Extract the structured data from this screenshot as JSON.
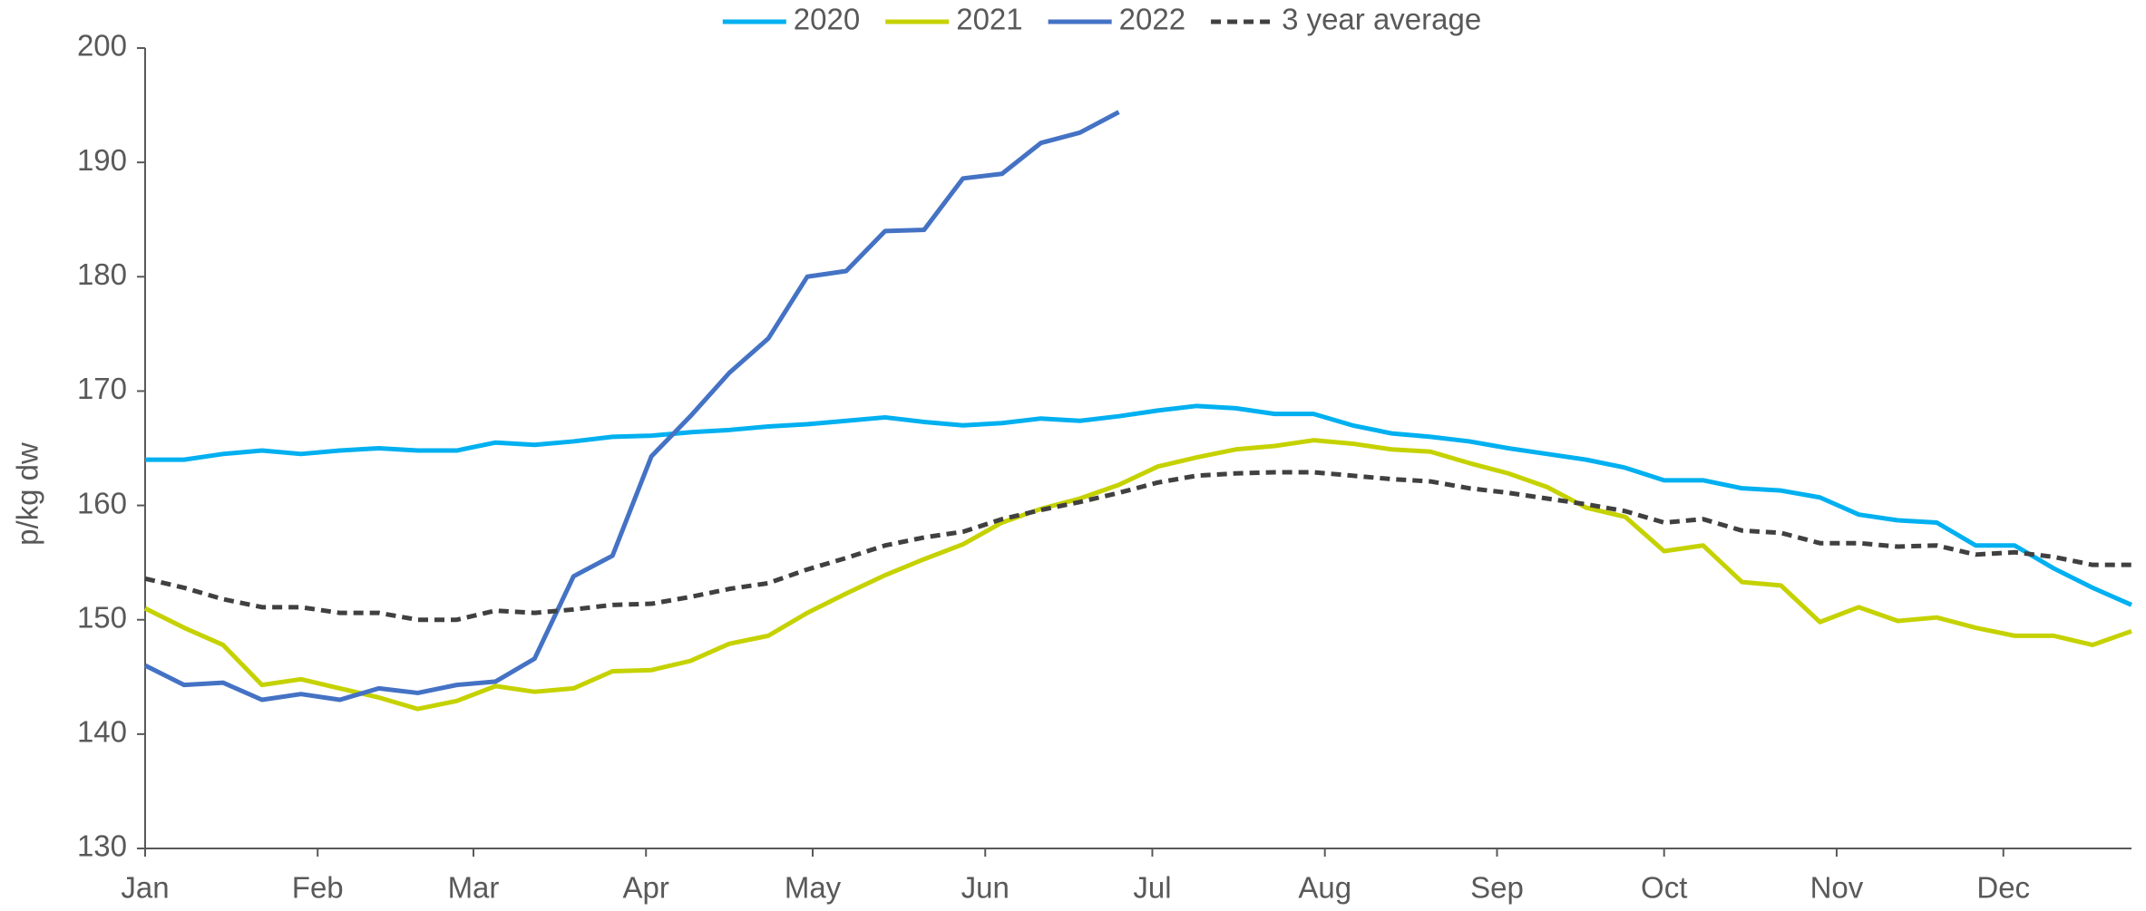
{
  "chart_data": {
    "type": "line",
    "y_label": "p/kg dw",
    "x": [
      0,
      1,
      2,
      3,
      4,
      5,
      6,
      7,
      8,
      9,
      10,
      11,
      12,
      13,
      14,
      15,
      16,
      17,
      18,
      19,
      20,
      21,
      22,
      23,
      24,
      25,
      26,
      27,
      28,
      29,
      30,
      31,
      32,
      33,
      34,
      35,
      36,
      37,
      38,
      39,
      40,
      41,
      42,
      43,
      44,
      45,
      46,
      47,
      48,
      49,
      50,
      51
    ],
    "xlim": [
      0,
      51
    ],
    "xticks": [
      {
        "value": 0,
        "label": "Jan"
      },
      {
        "value": 4.43,
        "label": "Feb"
      },
      {
        "value": 8.43,
        "label": "Mar"
      },
      {
        "value": 12.86,
        "label": "Apr"
      },
      {
        "value": 17.14,
        "label": "May"
      },
      {
        "value": 21.57,
        "label": "Jun"
      },
      {
        "value": 25.86,
        "label": "Jul"
      },
      {
        "value": 30.29,
        "label": "Aug"
      },
      {
        "value": 34.71,
        "label": "Sep"
      },
      {
        "value": 39,
        "label": "Oct"
      },
      {
        "value": 43.43,
        "label": "Nov"
      },
      {
        "value": 47.71,
        "label": "Dec"
      }
    ],
    "ylim": [
      130,
      200
    ],
    "yticks": [
      130,
      140,
      150,
      160,
      170,
      180,
      190,
      200
    ],
    "grid": false,
    "legend": "top",
    "series": [
      {
        "name": "2020",
        "color": "#00b0f0",
        "dash": false,
        "values": [
          164,
          164,
          164.5,
          164.8,
          164.5,
          164.8,
          165,
          164.8,
          164.8,
          165.5,
          165.3,
          165.6,
          166,
          166.1,
          166.4,
          166.6,
          166.9,
          167.1,
          167.4,
          167.7,
          167.3,
          167,
          167.2,
          167.6,
          167.4,
          167.8,
          168.3,
          168.7,
          168.5,
          168,
          168,
          167,
          166.3,
          166,
          165.6,
          165,
          164.5,
          164,
          163.3,
          162.2,
          162.2,
          161.5,
          161.3,
          160.7,
          159.2,
          158.7,
          158.5,
          156.5,
          156.5,
          154.5,
          152.8,
          151.3
        ]
      },
      {
        "name": "2021",
        "color": "#c5d200",
        "dash": false,
        "values": [
          151,
          149.3,
          147.8,
          144.3,
          144.8,
          144,
          143.2,
          142.2,
          142.9,
          144.2,
          143.7,
          144,
          145.5,
          145.6,
          146.4,
          147.9,
          148.6,
          150.6,
          152.3,
          153.9,
          155.3,
          156.6,
          158.5,
          159.7,
          160.6,
          161.8,
          163.4,
          164.2,
          164.9,
          165.2,
          165.7,
          165.4,
          164.9,
          164.7,
          163.7,
          162.8,
          161.6,
          159.8,
          159,
          156,
          156.5,
          153.3,
          153,
          149.8,
          151.1,
          149.9,
          150.2,
          149.3,
          148.6,
          148.6,
          147.8,
          149
        ]
      },
      {
        "name": "2022",
        "color": "#4472c4",
        "dash": false,
        "values": [
          146,
          144.3,
          144.5,
          143,
          143.5,
          143,
          144,
          143.6,
          144.3,
          144.6,
          146.6,
          153.8,
          155.6,
          164.3,
          167.8,
          171.6,
          174.6,
          180,
          180.5,
          184,
          184.1,
          188.6,
          189,
          191.7,
          192.6,
          194.4,
          null,
          null,
          null,
          null,
          null,
          null,
          null,
          null,
          null,
          null,
          null,
          null,
          null,
          null,
          null,
          null,
          null,
          null,
          null,
          null,
          null,
          null,
          null,
          null,
          null,
          null
        ]
      },
      {
        "name": "3 year average",
        "color": "#404040",
        "dash": true,
        "values": [
          153.6,
          152.8,
          151.8,
          151.1,
          151.1,
          150.6,
          150.6,
          150,
          150,
          150.8,
          150.6,
          150.9,
          151.3,
          151.4,
          152,
          152.7,
          153.2,
          154.4,
          155.4,
          156.5,
          157.2,
          157.7,
          158.8,
          159.6,
          160.3,
          161.1,
          162,
          162.6,
          162.8,
          162.9,
          162.9,
          162.6,
          162.3,
          162.1,
          161.5,
          161.1,
          160.6,
          160.1,
          159.5,
          158.5,
          158.8,
          157.8,
          157.6,
          156.7,
          156.7,
          156.4,
          156.5,
          155.7,
          155.9,
          155.5,
          154.8,
          154.8
        ]
      }
    ]
  }
}
